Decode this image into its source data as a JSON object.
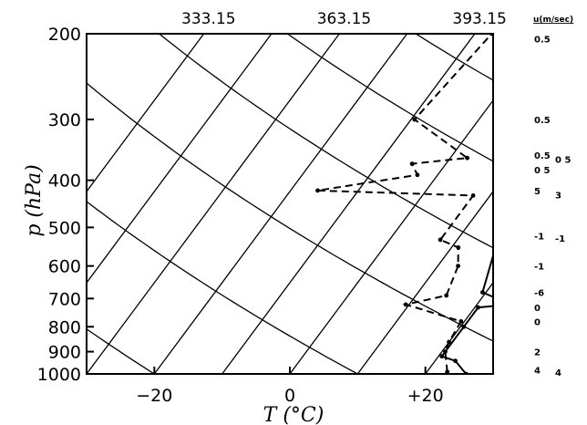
{
  "chart_data": {
    "type": "line",
    "title": "",
    "xlabel": "T (°C)",
    "ylabel": "p (hPa)",
    "xlim": [
      -30,
      30
    ],
    "ylim": [
      1000,
      200
    ],
    "yscale": "log",
    "x_ticks": [
      {
        "value": -20,
        "label": "−20"
      },
      {
        "value": 0,
        "label": "0"
      },
      {
        "value": 20,
        "label": "+20"
      }
    ],
    "y_ticks": [
      {
        "value": 200,
        "label": "200"
      },
      {
        "value": 300,
        "label": "300"
      },
      {
        "value": 400,
        "label": "400"
      },
      {
        "value": 500,
        "label": "500"
      },
      {
        "value": 600,
        "label": "600"
      },
      {
        "value": 700,
        "label": "700"
      },
      {
        "value": 800,
        "label": "800"
      },
      {
        "value": 900,
        "label": "900"
      },
      {
        "value": 1000,
        "label": "1000"
      }
    ],
    "top_labels": [
      {
        "label": "333.15",
        "x_at_top": -12
      },
      {
        "label": "363.15",
        "x_at_top": 8
      },
      {
        "label": "393.15",
        "x_at_top": 28
      }
    ],
    "series": [
      {
        "style": "solid",
        "markers": true,
        "points": [
          [
            26,
            1000
          ],
          [
            23,
            940
          ],
          [
            20.5,
            920
          ],
          [
            20.5,
            800
          ],
          [
            20.5,
            730
          ],
          [
            25,
            720
          ],
          [
            19.5,
            680
          ],
          [
            16.5,
            550
          ],
          [
            15.5,
            500
          ],
          [
            13,
            430
          ],
          [
            12.5,
            400
          ],
          [
            10,
            380
          ],
          [
            6.5,
            360
          ],
          [
            6,
            300
          ],
          [
            6,
            200
          ]
        ]
      },
      {
        "style": "dashed",
        "markers": true,
        "points": [
          [
            23,
            990
          ],
          [
            20.5,
            900
          ],
          [
            20,
            860
          ],
          [
            19.5,
            780
          ],
          [
            9.5,
            720
          ],
          [
            14.5,
            690
          ],
          [
            13,
            600
          ],
          [
            11,
            550
          ],
          [
            7.5,
            530
          ],
          [
            7.5,
            430
          ],
          [
            -16,
            420
          ],
          [
            -3,
            390
          ],
          [
            -5,
            370
          ],
          [
            2.5,
            360
          ],
          [
            -9.5,
            300
          ],
          [
            -7.5,
            200
          ]
        ]
      }
    ],
    "isotherms": [
      -50,
      -40,
      -30,
      -20,
      -10,
      0,
      10,
      20,
      30,
      40,
      50,
      60
    ],
    "dry_adiabats": [
      223.15,
      253.15,
      283.15,
      313.15,
      343.15,
      373.15,
      403.15
    ],
    "wind": {
      "header": "u(m/sec)",
      "entries": [
        {
          "p": 205,
          "text": "0.5"
        },
        {
          "p": 300,
          "text": "0.5"
        },
        {
          "p": 355,
          "text": "0.5"
        },
        {
          "p": 362,
          "text": "0 5",
          "col": 1
        },
        {
          "p": 380,
          "text": "0 5"
        },
        {
          "p": 420,
          "text": "5"
        },
        {
          "p": 428,
          "text": "3",
          "col": 1
        },
        {
          "p": 520,
          "text": "-1"
        },
        {
          "p": 526,
          "text": "-1",
          "col": 1
        },
        {
          "p": 600,
          "text": "-1"
        },
        {
          "p": 680,
          "text": "-6"
        },
        {
          "p": 730,
          "text": "0"
        },
        {
          "p": 780,
          "text": "0"
        },
        {
          "p": 900,
          "text": "2"
        },
        {
          "p": 980,
          "text": "4"
        },
        {
          "p": 992,
          "text": "4",
          "col": 1
        }
      ]
    }
  }
}
